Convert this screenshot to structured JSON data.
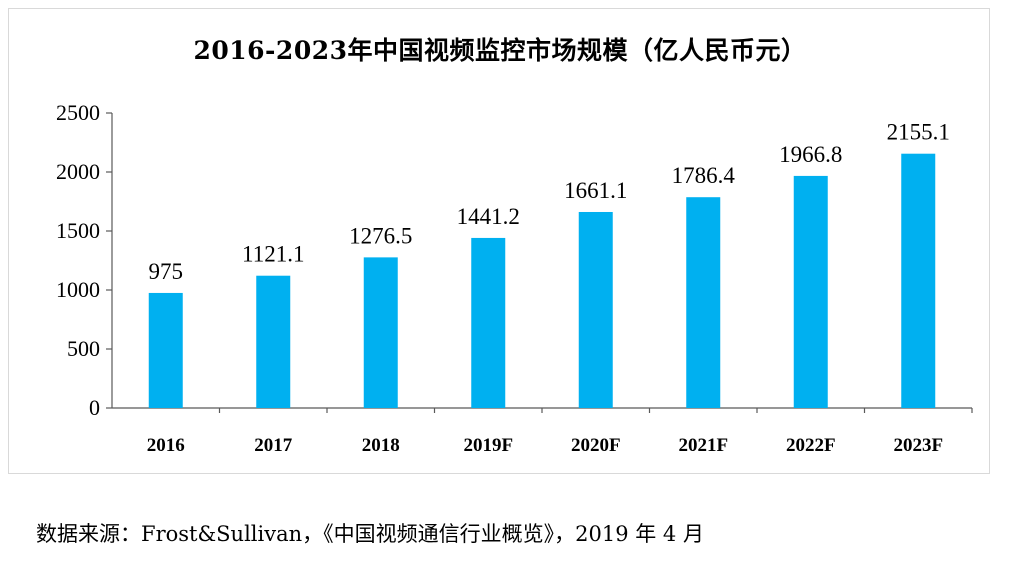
{
  "chart_data": {
    "type": "bar",
    "title": "2016-2023年中国视频监控市场规模（亿人民币元）",
    "categories": [
      "2016",
      "2017",
      "2018",
      "2019F",
      "2020F",
      "2021F",
      "2022F",
      "2023F"
    ],
    "values": [
      975,
      1121.1,
      1276.5,
      1441.2,
      1661.1,
      1786.4,
      1966.8,
      2155.1
    ],
    "data_labels": [
      "975",
      "1121.1",
      "1276.5",
      "1441.2",
      "1661.1",
      "1786.4",
      "1966.8",
      "2155.1"
    ],
    "yticks": [
      "0",
      "500",
      "1000",
      "1500",
      "2000",
      "2500"
    ],
    "ylim": [
      0,
      2500
    ],
    "bar_color": "#00b0f0",
    "grid": false,
    "legend": "none"
  },
  "source": "数据来源：Frost&Sullivan，《中国视频通信行业概览》，2019 年 4 月"
}
